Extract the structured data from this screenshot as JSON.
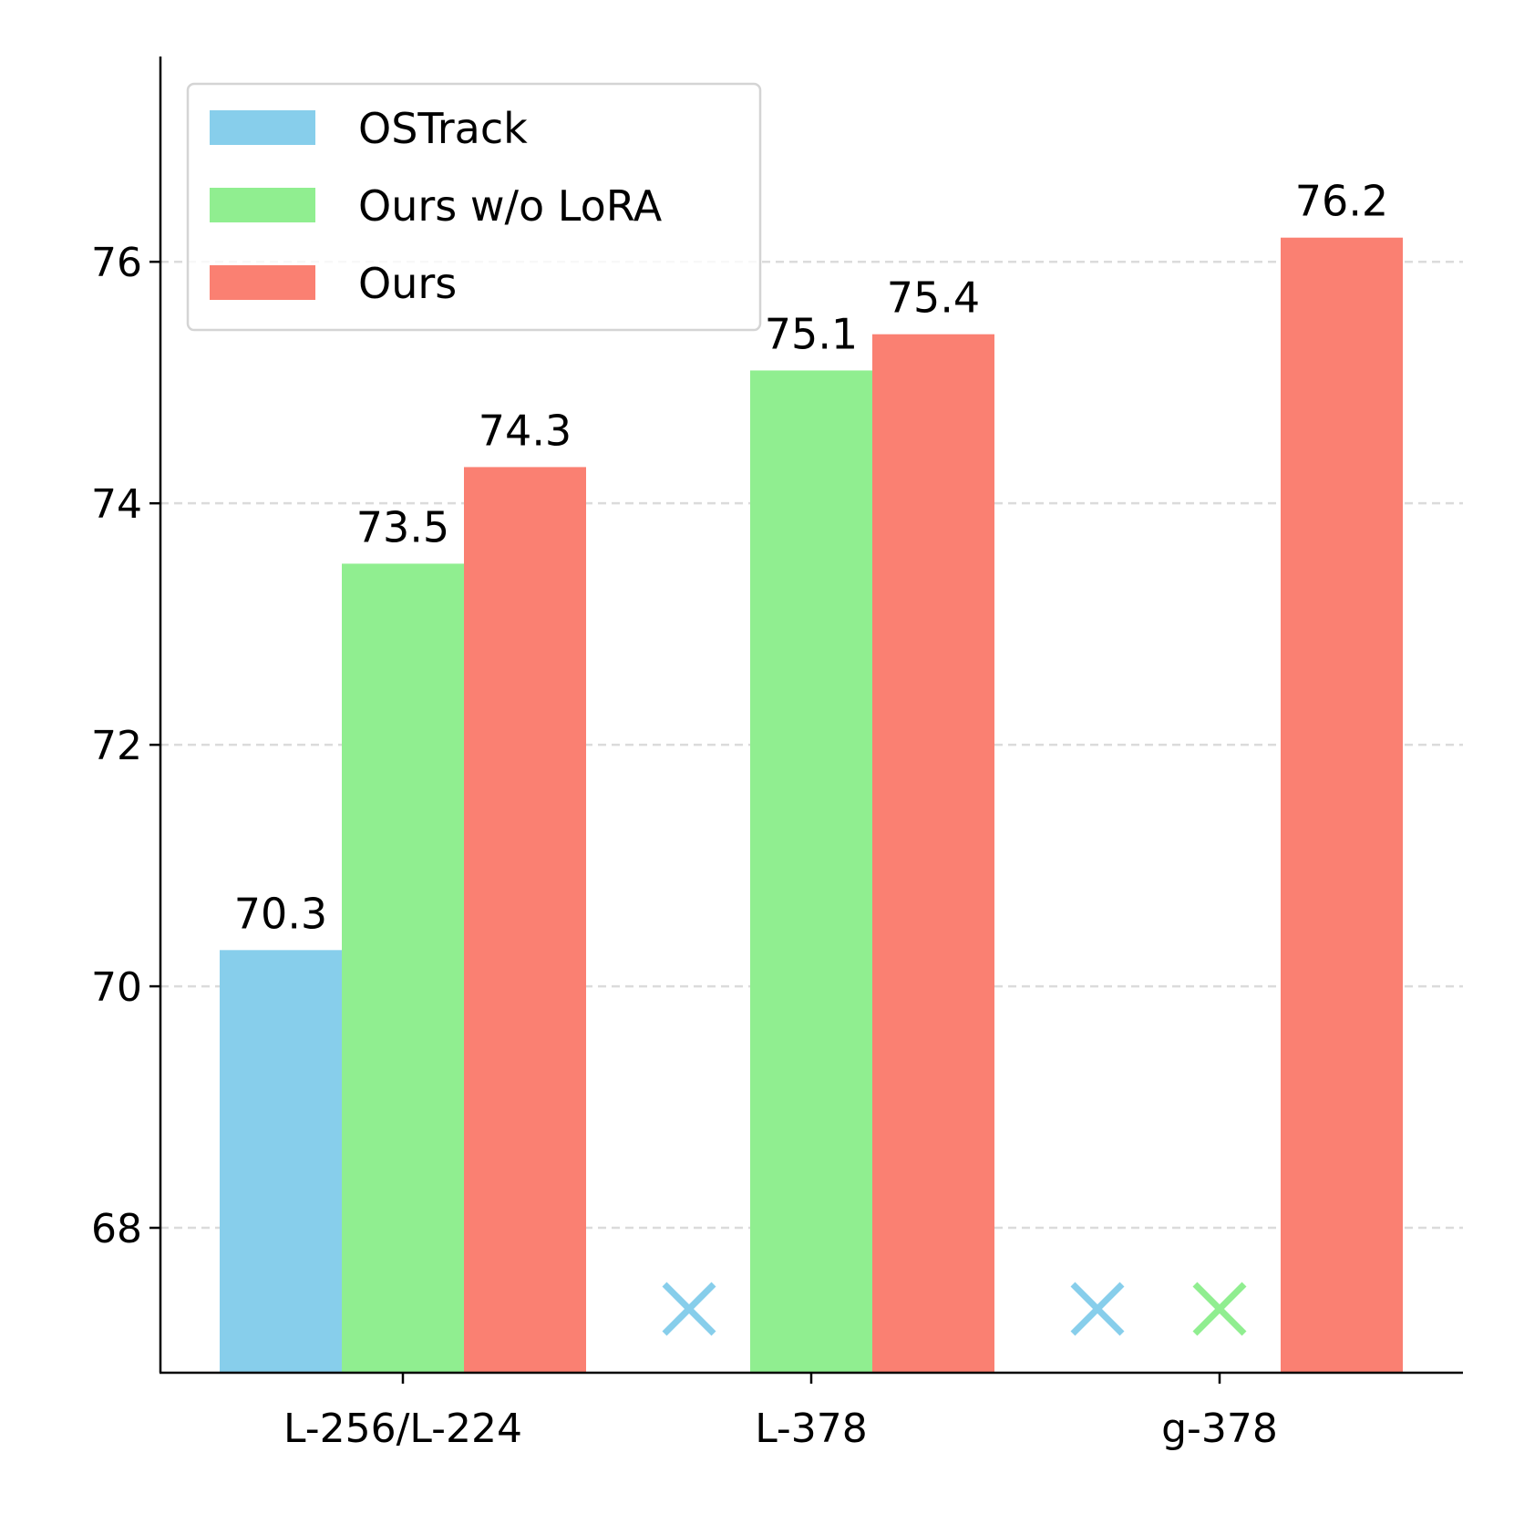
{
  "chart_data": {
    "type": "bar",
    "categories": [
      "L-256/L-224",
      "L-378",
      "g-378"
    ],
    "series": [
      {
        "name": "OSTrack",
        "color": "#87CEEB",
        "values": [
          70.3,
          null,
          null
        ]
      },
      {
        "name": "Ours w/o LoRA",
        "color": "#90EE90",
        "values": [
          73.5,
          75.1,
          null
        ]
      },
      {
        "name": "Ours",
        "color": "#FA8072",
        "values": [
          74.3,
          75.4,
          76.2
        ]
      }
    ],
    "data_labels": true,
    "missing_marker": "×",
    "ylim": [
      66.8,
      77.7
    ],
    "yticks": [
      68,
      70,
      72,
      74,
      76
    ],
    "grid": "y-dashed",
    "legend_position": "top-left"
  }
}
